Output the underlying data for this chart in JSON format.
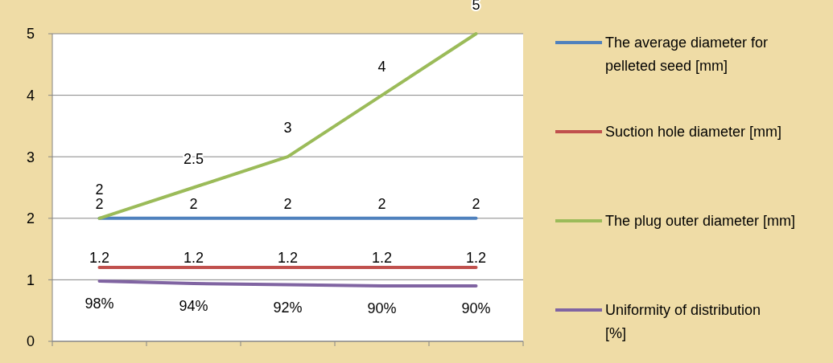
{
  "chart_data": {
    "type": "line",
    "categories": [
      null,
      null,
      null,
      null,
      null
    ],
    "ylim": [
      0,
      5
    ],
    "yticks": [
      0,
      1,
      2,
      3,
      4,
      5
    ],
    "grid": "y",
    "legend": "right",
    "marker": "none",
    "line_style": "solid",
    "series": [
      {
        "name": "The average diameter for pelleted seed [mm]",
        "color": "#4f81bd",
        "values": [
          2,
          2,
          2,
          2,
          2
        ],
        "value_labels": [
          "2",
          "2",
          "2",
          "2",
          "2"
        ]
      },
      {
        "name": "Suction hole diameter [mm]",
        "color": "#c0504d",
        "values": [
          1.2,
          1.2,
          1.2,
          1.2,
          1.2
        ],
        "value_labels": [
          "1.2",
          "1.2",
          "1.2",
          "1.2",
          "1.2"
        ]
      },
      {
        "name": "The plug outer diameter [mm]",
        "color": "#9bbb59",
        "values": [
          2,
          2.5,
          3,
          4,
          5
        ],
        "value_labels": [
          "2",
          "2.5",
          "3",
          "4",
          "5"
        ]
      },
      {
        "name": "Uniformity of distribution [%]",
        "color": "#8064a2",
        "values": [
          0.98,
          0.94,
          0.92,
          0.9,
          0.9
        ],
        "value_labels": [
          "98%",
          "94%",
          "92%",
          "90%",
          "90%"
        ]
      }
    ]
  }
}
